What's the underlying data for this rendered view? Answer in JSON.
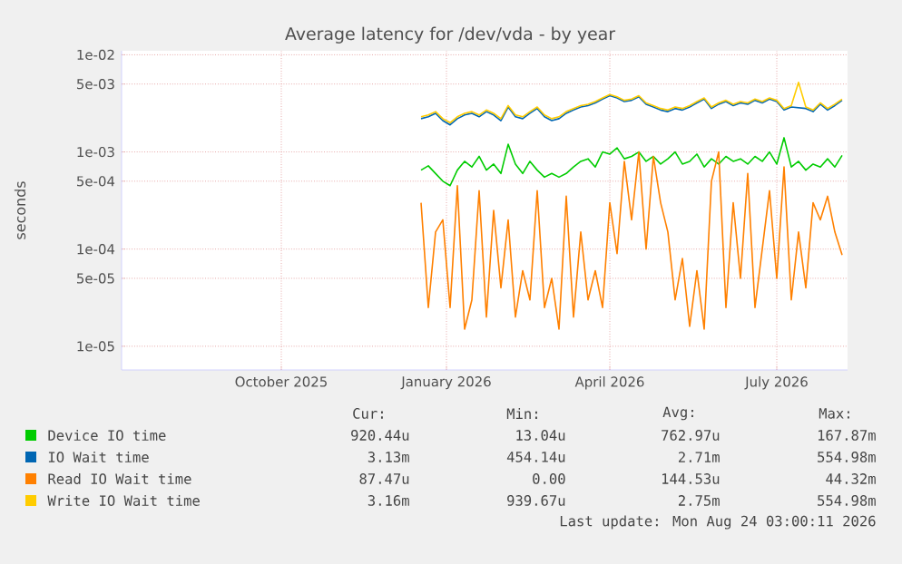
{
  "chart_data": {
    "type": "line",
    "title": "Average latency for /dev/vda - by year",
    "ylabel": "seconds",
    "x": [
      "2026-01-01",
      "2026-01-05",
      "2026-01-09",
      "2026-01-13",
      "2026-01-17",
      "2026-01-21",
      "2026-01-25",
      "2026-01-29",
      "2026-02-02",
      "2026-02-06",
      "2026-02-10",
      "2026-02-14",
      "2026-02-18",
      "2026-02-22",
      "2026-02-26",
      "2026-03-02",
      "2026-03-06",
      "2026-03-10",
      "2026-03-14",
      "2026-03-18",
      "2026-03-22",
      "2026-03-26",
      "2026-03-30",
      "2026-04-03",
      "2026-04-07",
      "2026-04-11",
      "2026-04-15",
      "2026-04-19",
      "2026-04-23",
      "2026-04-27",
      "2026-05-01",
      "2026-05-05",
      "2026-05-09",
      "2026-05-13",
      "2026-05-17",
      "2026-05-21",
      "2026-05-25",
      "2026-05-29",
      "2026-06-02",
      "2026-06-06",
      "2026-06-10",
      "2026-06-14",
      "2026-06-18",
      "2026-06-22",
      "2026-06-26",
      "2026-06-30",
      "2026-07-04",
      "2026-07-08",
      "2026-07-12",
      "2026-07-16",
      "2026-07-20",
      "2026-07-24",
      "2026-07-28",
      "2026-08-01",
      "2026-08-05",
      "2026-08-09",
      "2026-08-13",
      "2026-08-17",
      "2026-08-21"
    ],
    "series": [
      {
        "name": "Device IO time",
        "color": "#00cc00",
        "values": [
          0.00065,
          0.00072,
          0.0006,
          0.0005,
          0.00045,
          0.00065,
          0.0008,
          0.0007,
          0.0009,
          0.00065,
          0.00075,
          0.0006,
          0.0012,
          0.00075,
          0.0006,
          0.0008,
          0.00065,
          0.00055,
          0.0006,
          0.00055,
          0.0006,
          0.0007,
          0.0008,
          0.00085,
          0.0007,
          0.001,
          0.00095,
          0.0011,
          0.00085,
          0.0009,
          0.001,
          0.0008,
          0.0009,
          0.00075,
          0.00085,
          0.001,
          0.00075,
          0.0008,
          0.00095,
          0.0007,
          0.00085,
          0.00075,
          0.0009,
          0.0008,
          0.00085,
          0.00075,
          0.0009,
          0.0008,
          0.001,
          0.00075,
          0.0014,
          0.0007,
          0.0008,
          0.00065,
          0.00075,
          0.0007,
          0.00085,
          0.0007,
          0.00092
        ]
      },
      {
        "name": "IO Wait time",
        "color": "#0066b3",
        "values": [
          0.0022,
          0.0023,
          0.0025,
          0.0021,
          0.0019,
          0.0022,
          0.0024,
          0.0025,
          0.0023,
          0.0026,
          0.0024,
          0.0021,
          0.0029,
          0.0023,
          0.0022,
          0.0025,
          0.0028,
          0.0023,
          0.0021,
          0.0022,
          0.0025,
          0.0027,
          0.0029,
          0.003,
          0.0032,
          0.0035,
          0.0038,
          0.0036,
          0.0033,
          0.0034,
          0.0037,
          0.0031,
          0.0029,
          0.0027,
          0.0026,
          0.0028,
          0.0027,
          0.0029,
          0.0032,
          0.0035,
          0.0028,
          0.0031,
          0.0033,
          0.003,
          0.0032,
          0.0031,
          0.0034,
          0.0032,
          0.0035,
          0.0033,
          0.0027,
          0.0029,
          null,
          0.0028,
          0.0026,
          0.0031,
          0.0027,
          0.003,
          0.0034
        ]
      },
      {
        "name": "Read IO Wait time",
        "color": "#ff8000",
        "values": [
          0.0003,
          2.5e-05,
          0.00015,
          0.0002,
          2.5e-05,
          0.00045,
          1.5e-05,
          3e-05,
          0.0004,
          2e-05,
          0.00025,
          4e-05,
          0.0002,
          2e-05,
          6e-05,
          3e-05,
          0.0004,
          2.5e-05,
          5e-05,
          1.5e-05,
          0.00035,
          2e-05,
          0.00015,
          3e-05,
          6e-05,
          2.5e-05,
          0.0003,
          9e-05,
          0.0008,
          0.0002,
          0.001,
          0.0001,
          0.0009,
          0.0003,
          0.00015,
          3e-05,
          8e-05,
          1.6e-05,
          6e-05,
          1.5e-05,
          0.0005,
          0.001,
          2.5e-05,
          0.0003,
          5e-05,
          0.0006,
          2.5e-05,
          0.0001,
          0.0004,
          5e-05,
          0.0007,
          3e-05,
          0.00015,
          4e-05,
          0.0003,
          0.0002,
          0.00035,
          0.00015,
          8.7e-05
        ]
      },
      {
        "name": "Write IO Wait time",
        "color": "#ffcc00",
        "values": [
          0.0023,
          0.0024,
          0.0026,
          0.0022,
          0.002,
          0.0023,
          0.0025,
          0.0026,
          0.0024,
          0.0027,
          0.0025,
          0.0022,
          0.003,
          0.0024,
          0.0023,
          0.0026,
          0.0029,
          0.0024,
          0.0022,
          0.0023,
          0.0026,
          0.0028,
          0.003,
          0.0031,
          0.0033,
          0.0036,
          0.0039,
          0.0037,
          0.0034,
          0.0035,
          0.0038,
          0.0032,
          0.003,
          0.0028,
          0.0027,
          0.0029,
          0.0028,
          0.003,
          0.0033,
          0.0036,
          0.0029,
          0.0032,
          0.0034,
          0.0031,
          0.0033,
          0.0032,
          0.0035,
          0.0033,
          0.0036,
          0.0034,
          0.0028,
          0.003,
          0.0052,
          0.0029,
          0.0027,
          0.0032,
          0.0028,
          0.0031,
          0.0035
        ]
      }
    ],
    "xlim": [
      "2025-07-20",
      "2026-08-24"
    ],
    "xticks": [
      {
        "value": "2025-10-16",
        "label": "October 2025"
      },
      {
        "value": "2026-01-15",
        "label": "January 2026"
      },
      {
        "value": "2026-04-15",
        "label": "April 2026"
      },
      {
        "value": "2026-07-16",
        "label": "July 2026"
      }
    ],
    "ylim": [
      5.7e-06,
      0.011
    ],
    "yticks": [
      {
        "value": 1e-05,
        "label": "1e-05"
      },
      {
        "value": 5e-05,
        "label": "5e-05"
      },
      {
        "value": 0.0001,
        "label": "1e-04"
      },
      {
        "value": 0.0005,
        "label": "5e-04"
      },
      {
        "value": 0.001,
        "label": "1e-03"
      },
      {
        "value": 0.005,
        "label": "5e-03"
      },
      {
        "value": 0.01,
        "label": "1e-02"
      }
    ],
    "log": "y",
    "grid": true,
    "legend": "bottom",
    "annotations": [
      "Cur:",
      "Min:",
      "Avg:",
      "Max:",
      "920.44u",
      "13.04u",
      "762.97u",
      "167.87m",
      "3.13m",
      "454.14u",
      "2.71m",
      "554.98m",
      "87.47u",
      "0.00",
      "144.53u",
      "44.32m",
      "3.16m",
      "939.67u",
      "2.75m",
      "554.98m",
      "Last update: Mon Aug 24 03:00:11 2026"
    ]
  }
}
